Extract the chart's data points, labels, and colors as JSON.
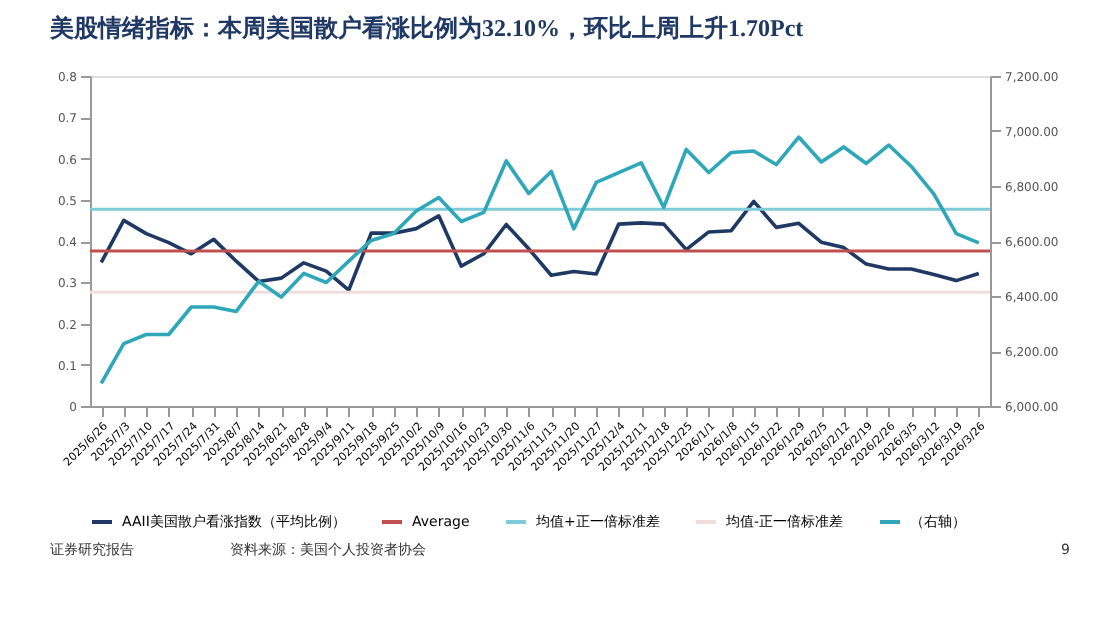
{
  "chart_data": {
    "type": "line",
    "title": "美股情绪指标：本周美国散户看涨比例为32.10%，环比上周上升1.70Pct",
    "categories": [
      "2025/6/26",
      "2025/7/3",
      "2025/7/10",
      "2025/7/17",
      "2025/7/24",
      "2025/7/31",
      "2025/8/7",
      "2025/8/14",
      "2025/8/21",
      "2025/8/28",
      "2025/9/4",
      "2025/9/11",
      "2025/9/18",
      "2025/9/25",
      "2025/10/2",
      "2025/10/9",
      "2025/10/16",
      "2025/10/23",
      "2025/10/30",
      "2025/11/6",
      "2025/11/13",
      "2025/11/20",
      "2025/11/27",
      "2025/12/4",
      "2025/12/11",
      "2025/12/18",
      "2025/12/25",
      "2026/1/1",
      "2026/1/8",
      "2026/1/15",
      "2026/1/22",
      "2026/1/29",
      "2026/2/5",
      "2026/2/12",
      "2026/2/19",
      "2026/2/26",
      "2026/3/5",
      "2026/3/12",
      "2026/3/19",
      "2026/3/26"
    ],
    "series": [
      {
        "name": "AAII美国散户看涨指数（平均比例）",
        "color": "#1f3864",
        "values": [
          0.348,
          0.45,
          0.418,
          0.396,
          0.369,
          0.404,
          0.351,
          0.302,
          0.31,
          0.347,
          0.327,
          0.281,
          0.419,
          0.419,
          0.43,
          0.461,
          0.339,
          0.369,
          0.44,
          0.381,
          0.317,
          0.326,
          0.32,
          0.441,
          0.444,
          0.441,
          0.379,
          0.422,
          0.425,
          0.496,
          0.433,
          0.443,
          0.397,
          0.384,
          0.344,
          0.332,
          0.332,
          0.319,
          0.304,
          0.321
        ]
      },
      {
        "name": "（右轴）",
        "color": "#2ea7b8",
        "axis": "y2",
        "values": [
          6082,
          6227,
          6260,
          6260,
          6360,
          6360,
          6344,
          6453,
          6396,
          6482,
          6449,
          6527,
          6602,
          6627,
          6709,
          6758,
          6671,
          6704,
          6891,
          6773,
          6853,
          6644,
          6813,
          6849,
          6884,
          6722,
          6933,
          6849,
          6922,
          6927,
          6878,
          6978,
          6887,
          6942,
          6882,
          6949,
          6871,
          6771,
          6627,
          6593
        ]
      }
    ],
    "ref_lines": [
      {
        "axis": "y",
        "value": 0.376,
        "label": "Average",
        "color": "#c0504d"
      },
      {
        "axis": "y",
        "value": 0.477,
        "label": "均值+正一倍标准差",
        "color": "#7fcbd8"
      },
      {
        "axis": "y",
        "value": 0.276,
        "label": "均值-正一倍标准差",
        "color": "#f2dcdb"
      }
    ],
    "ylim": [
      0,
      0.8
    ],
    "yticks": [
      0,
      0.1,
      0.2,
      0.3,
      0.4,
      0.5,
      0.6,
      0.7,
      0.8
    ],
    "y2lim": [
      6000,
      7200
    ],
    "y2ticks": [
      {
        "value": 6000,
        "label": "6,000.00"
      },
      {
        "value": 6200,
        "label": "6,200.00"
      },
      {
        "value": 6400,
        "label": "6,400.00"
      },
      {
        "value": 6600,
        "label": "6,600.00"
      },
      {
        "value": 6800,
        "label": "6,800.00"
      },
      {
        "value": 7000,
        "label": "7,000.00"
      },
      {
        "value": 7200,
        "label": "7,200.00"
      }
    ],
    "grid": false,
    "legend": "bottom",
    "marker": "none",
    "line_style": "solid",
    "annotations": [
      "证券研究报告",
      "资料来源：美国个人投资者协会",
      "9"
    ]
  }
}
